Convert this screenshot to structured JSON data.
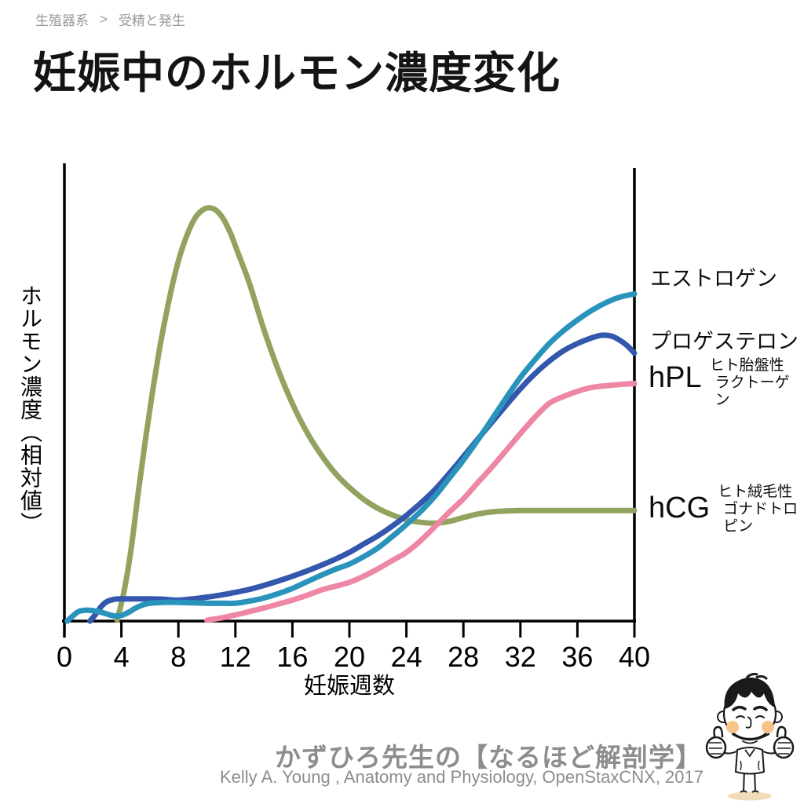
{
  "page": {
    "breadcrumb": {
      "section": "生殖器系",
      "separator": ">",
      "subsection": "受精と発生"
    },
    "title": "妊娠中のホルモン濃度変化",
    "footer": {
      "brand": "かずひろ先生の【なるほど解剖学】",
      "credit": "Kelly A. Young , Anatomy and Physiology, OpenStaxCNX, 2017"
    },
    "mascot": "kazuhiro-sensei-thumbs-up-cartoon"
  },
  "chart_data": {
    "type": "line",
    "title": "妊娠中のホルモン濃度変化",
    "xlabel": "妊娠週数",
    "ylabel": "ホルモン濃度（相対値）",
    "xlim": [
      0,
      40
    ],
    "x_ticks": [
      0,
      4,
      8,
      12,
      16,
      20,
      24,
      28,
      32,
      36,
      40
    ],
    "ylim": [
      0,
      1
    ],
    "y_ticks": [],
    "grid": false,
    "legend_position": "labels at right edge aligned to curve endpoints",
    "axis_color": "#000000",
    "series": [
      {
        "id": "estrogen",
        "label": "エストロゲン",
        "sublabel_lines": [],
        "color": "#2A93BC",
        "points": [
          [
            0.2,
            0.0
          ],
          [
            0.6,
            0.012
          ],
          [
            1.0,
            0.022
          ],
          [
            1.5,
            0.025
          ],
          [
            2.0,
            0.024
          ],
          [
            2.5,
            0.021
          ],
          [
            3.0,
            0.016
          ],
          [
            3.5,
            0.012
          ],
          [
            4.0,
            0.013
          ],
          [
            4.5,
            0.02
          ],
          [
            5.0,
            0.03
          ],
          [
            5.5,
            0.037
          ],
          [
            6,
            0.041
          ],
          [
            7,
            0.043
          ],
          [
            8,
            0.043
          ],
          [
            9,
            0.042
          ],
          [
            10,
            0.041
          ],
          [
            11,
            0.041
          ],
          [
            12,
            0.041
          ],
          [
            13,
            0.046
          ],
          [
            14,
            0.053
          ],
          [
            15,
            0.063
          ],
          [
            16,
            0.075
          ],
          [
            17,
            0.09
          ],
          [
            18,
            0.105
          ],
          [
            19,
            0.119
          ],
          [
            20,
            0.131
          ],
          [
            21,
            0.148
          ],
          [
            22,
            0.168
          ],
          [
            23,
            0.194
          ],
          [
            24,
            0.222
          ],
          [
            25,
            0.252
          ],
          [
            26,
            0.287
          ],
          [
            27,
            0.328
          ],
          [
            28,
            0.37
          ],
          [
            29,
            0.416
          ],
          [
            30,
            0.464
          ],
          [
            31,
            0.513
          ],
          [
            32,
            0.56
          ],
          [
            33,
            0.6
          ],
          [
            34,
            0.637
          ],
          [
            35,
            0.667
          ],
          [
            36,
            0.692
          ],
          [
            37,
            0.714
          ],
          [
            38,
            0.732
          ],
          [
            39,
            0.745
          ],
          [
            40,
            0.752
          ]
        ]
      },
      {
        "id": "progesterone",
        "label": "プロゲステロン",
        "sublabel_lines": [],
        "color": "#3357AC",
        "points": [
          [
            1.8,
            0.0
          ],
          [
            2.2,
            0.016
          ],
          [
            2.6,
            0.034
          ],
          [
            3.0,
            0.045
          ],
          [
            3.5,
            0.05
          ],
          [
            4,
            0.051
          ],
          [
            5,
            0.051
          ],
          [
            6,
            0.051
          ],
          [
            7,
            0.05
          ],
          [
            8,
            0.048
          ],
          [
            9,
            0.051
          ],
          [
            10,
            0.055
          ],
          [
            11,
            0.06
          ],
          [
            12,
            0.066
          ],
          [
            13,
            0.073
          ],
          [
            14,
            0.082
          ],
          [
            15,
            0.092
          ],
          [
            16,
            0.103
          ],
          [
            17,
            0.115
          ],
          [
            18,
            0.128
          ],
          [
            19,
            0.142
          ],
          [
            20,
            0.158
          ],
          [
            21,
            0.177
          ],
          [
            22,
            0.196
          ],
          [
            23,
            0.218
          ],
          [
            24,
            0.243
          ],
          [
            25,
            0.271
          ],
          [
            26,
            0.302
          ],
          [
            27,
            0.339
          ],
          [
            28,
            0.378
          ],
          [
            29,
            0.418
          ],
          [
            30,
            0.457
          ],
          [
            31,
            0.496
          ],
          [
            32,
            0.534
          ],
          [
            33,
            0.568
          ],
          [
            34,
            0.597
          ],
          [
            35,
            0.621
          ],
          [
            36,
            0.638
          ],
          [
            37,
            0.651
          ],
          [
            37.7,
            0.657
          ],
          [
            38.4,
            0.655
          ],
          [
            39,
            0.645
          ],
          [
            39.5,
            0.633
          ],
          [
            40,
            0.616
          ]
        ]
      },
      {
        "id": "hpl",
        "label": "hPL",
        "sublabel_lines": [
          "ヒト胎盤性",
          "ラクトーゲン"
        ],
        "color": "#EE87A3",
        "points": [
          [
            10,
            0.002
          ],
          [
            11,
            0.007
          ],
          [
            12,
            0.014
          ],
          [
            13,
            0.022
          ],
          [
            14,
            0.03
          ],
          [
            15,
            0.039
          ],
          [
            16,
            0.048
          ],
          [
            17,
            0.059
          ],
          [
            18,
            0.071
          ],
          [
            19,
            0.08
          ],
          [
            20,
            0.089
          ],
          [
            21,
            0.103
          ],
          [
            22,
            0.12
          ],
          [
            23,
            0.139
          ],
          [
            24,
            0.158
          ],
          [
            25,
            0.185
          ],
          [
            26,
            0.217
          ],
          [
            27,
            0.25
          ],
          [
            28,
            0.281
          ],
          [
            29,
            0.318
          ],
          [
            30,
            0.354
          ],
          [
            31,
            0.392
          ],
          [
            32,
            0.431
          ],
          [
            33,
            0.468
          ],
          [
            34,
            0.5
          ],
          [
            35,
            0.516
          ],
          [
            36,
            0.528
          ],
          [
            37,
            0.537
          ],
          [
            38,
            0.541
          ],
          [
            39,
            0.544
          ],
          [
            40,
            0.546
          ]
        ]
      },
      {
        "id": "hcg",
        "label": "hCG",
        "sublabel_lines": [
          "ヒト絨毛性",
          "ゴナドトロピン"
        ],
        "color": "#92A35F",
        "points": [
          [
            3.7,
            0.002
          ],
          [
            4.2,
            0.07
          ],
          [
            4.7,
            0.17
          ],
          [
            5.2,
            0.3
          ],
          [
            5.7,
            0.42
          ],
          [
            6.2,
            0.53
          ],
          [
            6.7,
            0.63
          ],
          [
            7.2,
            0.715
          ],
          [
            7.7,
            0.79
          ],
          [
            8.2,
            0.85
          ],
          [
            8.7,
            0.895
          ],
          [
            9.2,
            0.928
          ],
          [
            9.7,
            0.945
          ],
          [
            10.2,
            0.95
          ],
          [
            10.7,
            0.943
          ],
          [
            11.2,
            0.922
          ],
          [
            11.7,
            0.888
          ],
          [
            12.2,
            0.845
          ],
          [
            13,
            0.775
          ],
          [
            14,
            0.67
          ],
          [
            15,
            0.578
          ],
          [
            16,
            0.5
          ],
          [
            17,
            0.435
          ],
          [
            18,
            0.383
          ],
          [
            19,
            0.34
          ],
          [
            20,
            0.307
          ],
          [
            21,
            0.28
          ],
          [
            22,
            0.259
          ],
          [
            23,
            0.244
          ],
          [
            24,
            0.233
          ],
          [
            25,
            0.227
          ],
          [
            26,
            0.225
          ],
          [
            27,
            0.229
          ],
          [
            28,
            0.238
          ],
          [
            29,
            0.246
          ],
          [
            30,
            0.251
          ],
          [
            31,
            0.253
          ],
          [
            32,
            0.254
          ],
          [
            34,
            0.254
          ],
          [
            36,
            0.254
          ],
          [
            38,
            0.254
          ],
          [
            40,
            0.254
          ]
        ]
      }
    ]
  }
}
